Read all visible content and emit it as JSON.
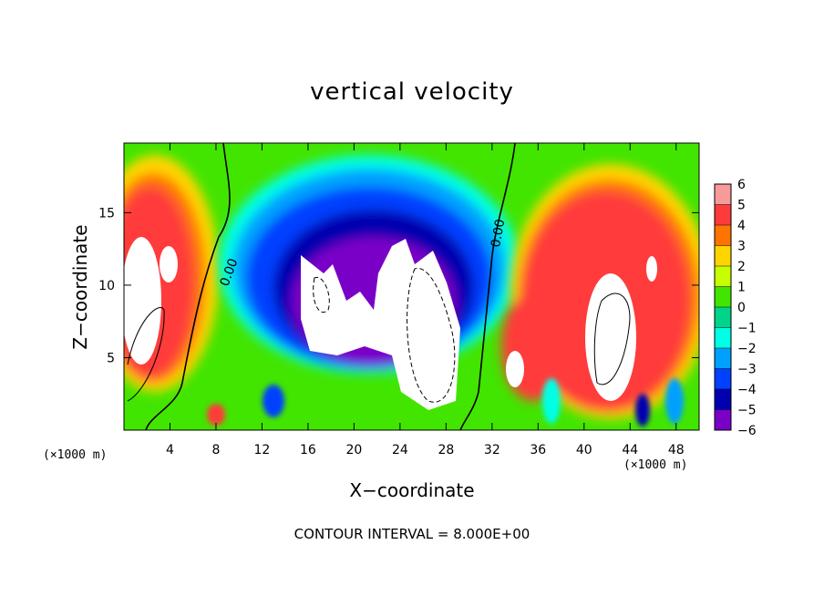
{
  "title": "vertical velocity",
  "xlabel": "X−coordinate",
  "ylabel": "Z−coordinate",
  "x_unit_left": "(×1000 m)",
  "x_unit_right": "(×1000 m)",
  "footer": "CONTOUR INTERVAL = 8.000E+00",
  "chart_data": {
    "type": "heatmap",
    "title": "vertical velocity",
    "xlabel": "X−coordinate",
    "ylabel": "Z−coordinate",
    "x_unit": "(×1000 m)",
    "xlim": [
      0,
      50
    ],
    "ylim": [
      0,
      19.8
    ],
    "x_ticks": [
      4,
      8,
      12,
      16,
      20,
      24,
      28,
      32,
      36,
      40,
      44,
      48
    ],
    "y_ticks": [
      5,
      10,
      15
    ],
    "colorbar": {
      "ticks": [
        6,
        5,
        4,
        3,
        2,
        1,
        0,
        -1,
        -2,
        -3,
        -4,
        -5,
        -6
      ],
      "colors": [
        "#f79a9a",
        "#ff3a3a",
        "#ff7400",
        "#ffd500",
        "#c8ff00",
        "#42e500",
        "#00d48a",
        "#00ffe6",
        "#00a0ff",
        "#0040ff",
        "#0000b0",
        "#7a00c8"
      ]
    },
    "contour_labels": [
      "0.00",
      "0.00"
    ],
    "contour_interval": "8.000E+00"
  }
}
